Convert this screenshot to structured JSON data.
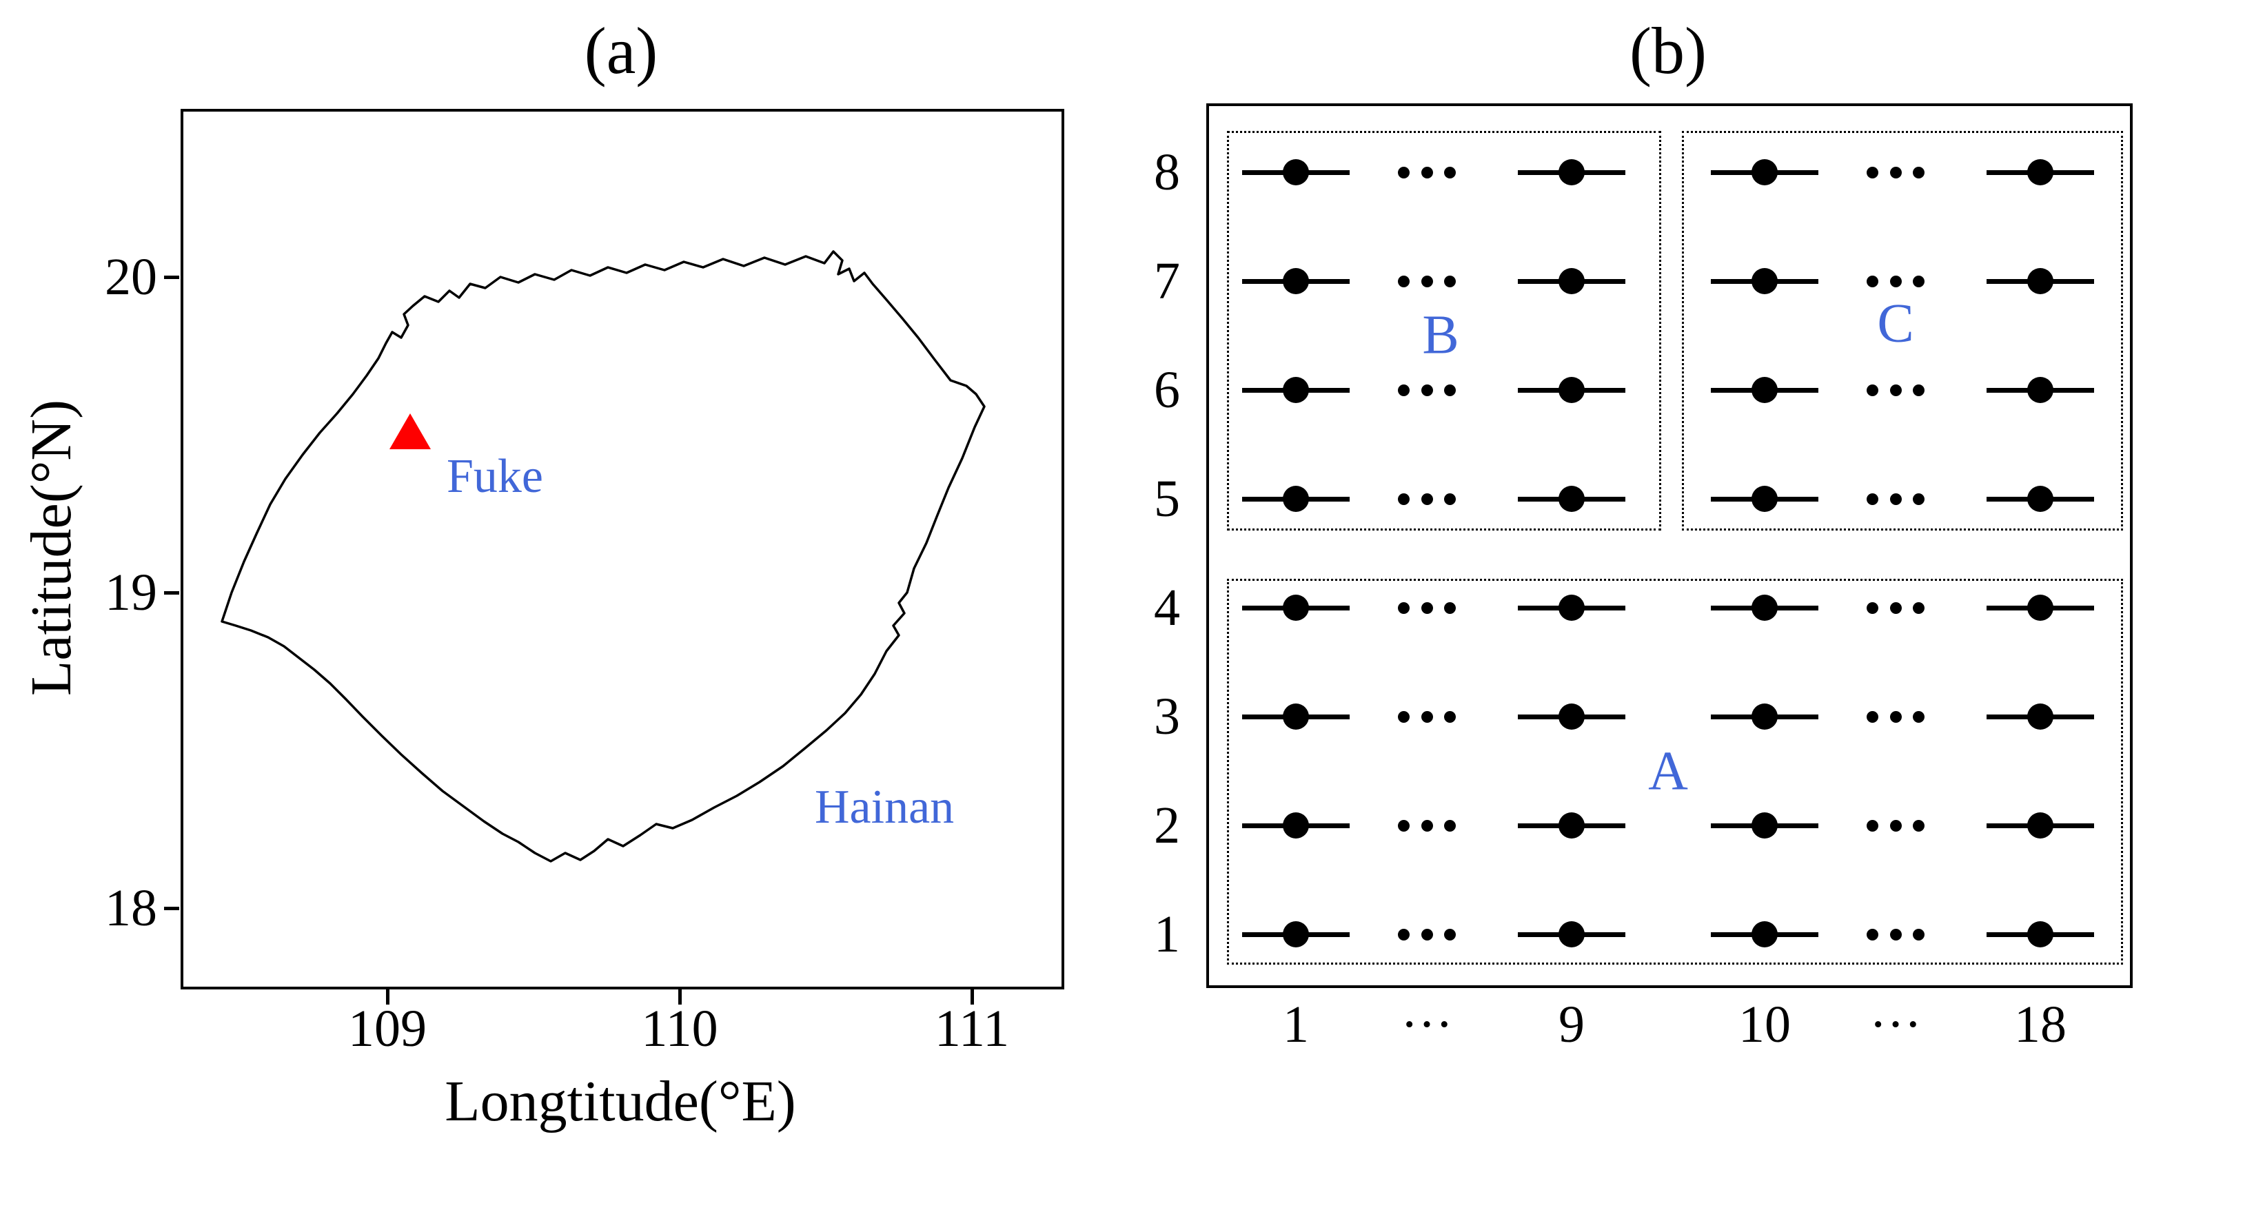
{
  "figure": {
    "colors": {
      "annotation_blue": "#4167d8",
      "marker_red": "#fe0000",
      "ink": "#000000",
      "background": "#ffffff"
    },
    "panel_a": {
      "title": "(a)",
      "x_axis_label": "Longtitude(°E)",
      "y_axis_label": "Latitude(°N)",
      "x_ticks": [
        "109",
        "110",
        "111"
      ],
      "y_ticks": [
        "20",
        "19",
        "18"
      ],
      "station_label": "Fuke",
      "island_label": "Hainan"
    },
    "panel_b": {
      "title": "(b)",
      "row_labels": [
        "8",
        "7",
        "6",
        "5",
        "4",
        "3",
        "2",
        "1"
      ],
      "column_labels": [
        "1",
        "···",
        "9",
        "10",
        "···",
        "18"
      ],
      "subarray_labels": {
        "top_left": "B",
        "top_right": "C",
        "bottom": "A"
      }
    }
  },
  "chart_data": [
    {
      "type": "map",
      "title": "(a)",
      "xlabel": "Longtitude(°E)",
      "ylabel": "Latitude(°N)",
      "xlim": [
        108.3,
        111.3
      ],
      "ylim": [
        17.75,
        20.55
      ],
      "x_ticks": [
        109,
        110,
        111
      ],
      "y_ticks": [
        18,
        19,
        20
      ],
      "region_outline": "Hainan island coastline",
      "region_label": "Hainan",
      "markers": [
        {
          "label": "Fuke",
          "symbol": "triangle",
          "color": "#fe0000",
          "lon": 109.1,
          "lat": 19.5
        }
      ]
    },
    {
      "type": "diagram",
      "title": "(b)",
      "description": "Antenna element array: rows 1-8, columns 1-18; each element drawn as a horizontal line with a center dot; ellipses denote omitted columns 2-8 and 11-17.",
      "rows_shown": [
        8,
        7,
        6,
        5,
        4,
        3,
        2,
        1
      ],
      "columns_shown": [
        1,
        9,
        10,
        18
      ],
      "column_range": [
        1,
        18
      ],
      "subarrays": [
        {
          "label": "A",
          "rows": [
            1,
            4
          ],
          "columns": [
            1,
            18
          ]
        },
        {
          "label": "B",
          "rows": [
            5,
            8
          ],
          "columns": [
            1,
            9
          ]
        },
        {
          "label": "C",
          "rows": [
            5,
            8
          ],
          "columns": [
            10,
            18
          ]
        }
      ]
    }
  ]
}
